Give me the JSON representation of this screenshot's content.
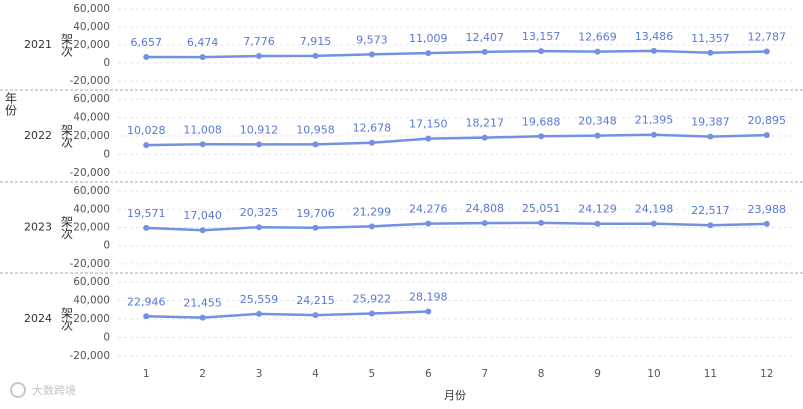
{
  "facet_label": "年份",
  "x_label": "月份",
  "watermark": "大数跨境",
  "chart_data": [
    {
      "type": "line",
      "title": "2021",
      "y_label": "架次",
      "color": "#7490e2",
      "grid": true,
      "categories": [
        1,
        2,
        3,
        4,
        5,
        6,
        7,
        8,
        9,
        10,
        11,
        12
      ],
      "values": [
        6657,
        6474,
        7776,
        7915,
        9573,
        11009,
        12407,
        13157,
        12669,
        13486,
        11357,
        12787
      ],
      "value_labels": [
        "6,657",
        "6,474",
        "7,776",
        "7,915",
        "9,573",
        "11,009",
        "12,407",
        "13,157",
        "12,669",
        "13,486",
        "11,357",
        "12,787"
      ],
      "ylim": [
        -30000,
        70000
      ],
      "yticks": [
        {
          "value": -20000,
          "label": "-20,000"
        },
        0,
        {
          "value": 20000,
          "label": "20,000"
        },
        {
          "value": 40000,
          "label": "40,000"
        },
        {
          "value": 60000,
          "label": "60,000"
        }
      ]
    },
    {
      "type": "line",
      "title": "2022",
      "y_label": "架次",
      "color": "#7490e2",
      "grid": true,
      "categories": [
        1,
        2,
        3,
        4,
        5,
        6,
        7,
        8,
        9,
        10,
        11,
        12
      ],
      "values": [
        10028,
        11008,
        10912,
        10958,
        12678,
        17150,
        18217,
        19688,
        20348,
        21395,
        19387,
        20895
      ],
      "value_labels": [
        "10,028",
        "11,008",
        "10,912",
        "10,958",
        "12,678",
        "17,150",
        "18,217",
        "19,688",
        "20,348",
        "21,395",
        "19,387",
        "20,895"
      ],
      "ylim": [
        -30000,
        70000
      ],
      "yticks": [
        {
          "value": -20000,
          "label": "-20,000"
        },
        0,
        {
          "value": 20000,
          "label": "20,000"
        },
        {
          "value": 40000,
          "label": "40,000"
        },
        {
          "value": 60000,
          "label": "60,000"
        }
      ]
    },
    {
      "type": "line",
      "title": "2023",
      "y_label": "架次",
      "color": "#7490e2",
      "grid": true,
      "categories": [
        1,
        2,
        3,
        4,
        5,
        6,
        7,
        8,
        9,
        10,
        11,
        12
      ],
      "values": [
        19571,
        17040,
        20325,
        19706,
        21299,
        24276,
        24808,
        25051,
        24129,
        24198,
        22517,
        23988
      ],
      "value_labels": [
        "19,571",
        "17,040",
        "20,325",
        "19,706",
        "21,299",
        "24,276",
        "24,808",
        "25,051",
        "24,129",
        "24,198",
        "22,517",
        "23,988"
      ],
      "ylim": [
        -30000,
        70000
      ],
      "yticks": [
        {
          "value": -20000,
          "label": "-20,000"
        },
        0,
        {
          "value": 20000,
          "label": "20,000"
        },
        {
          "value": 40000,
          "label": "40,000"
        },
        {
          "value": 60000,
          "label": "60,000"
        }
      ]
    },
    {
      "type": "line",
      "title": "2024",
      "y_label": "架次",
      "color": "#7490e2",
      "grid": true,
      "categories": [
        1,
        2,
        3,
        4,
        5,
        6,
        7,
        8,
        9,
        10,
        11,
        12
      ],
      "values": [
        22946,
        21455,
        25559,
        24215,
        25922,
        28198,
        null,
        null,
        null,
        null,
        null,
        null
      ],
      "value_labels": [
        "22,946",
        "21,455",
        "25,559",
        "24,215",
        "25,922",
        "28,198",
        null,
        null,
        null,
        null,
        null,
        null
      ],
      "ylim": [
        -30000,
        70000
      ],
      "yticks": [
        {
          "value": -20000,
          "label": "-20,000"
        },
        0,
        {
          "value": 20000,
          "label": "20,000"
        },
        {
          "value": 40000,
          "label": "40,000"
        },
        {
          "value": 60000,
          "label": "60,000"
        }
      ]
    }
  ]
}
